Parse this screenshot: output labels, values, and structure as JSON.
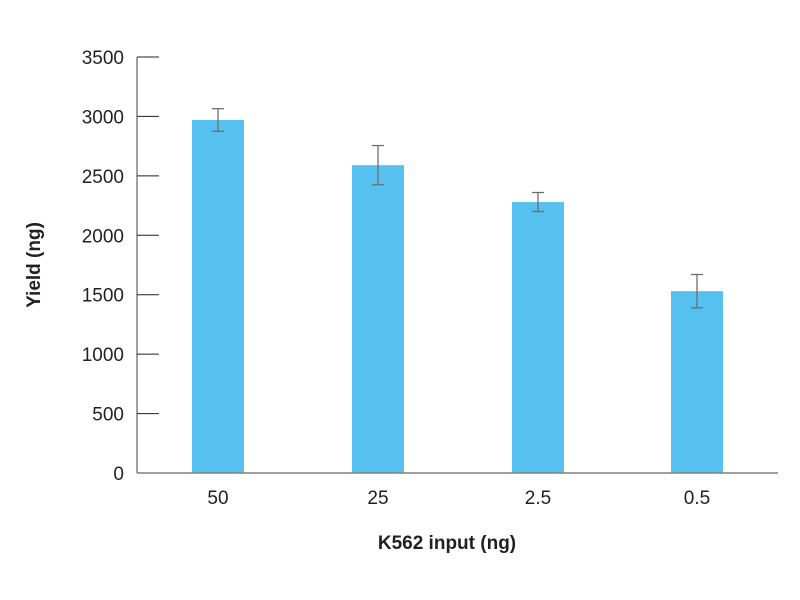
{
  "chart_data": {
    "type": "bar",
    "title": "",
    "xlabel": "K562 input (ng)",
    "ylabel": "Yield (ng)",
    "categories": [
      "50",
      "25",
      "2.5",
      "0.5"
    ],
    "values": [
      2970,
      2590,
      2280,
      1530
    ],
    "error": [
      95,
      165,
      80,
      140
    ],
    "ylim": [
      0,
      3500
    ],
    "yticks": [
      0,
      500,
      1000,
      1500,
      2000,
      2500,
      3000,
      3500
    ],
    "ytick_labels": [
      "0",
      "500",
      "1000",
      "1500",
      "2000",
      "2500",
      "3000",
      "3500"
    ],
    "grid": false,
    "legend": null,
    "colors": {
      "bar": "#56c0ee",
      "error_bar": "#6d6e71",
      "axis": "#808080"
    }
  }
}
